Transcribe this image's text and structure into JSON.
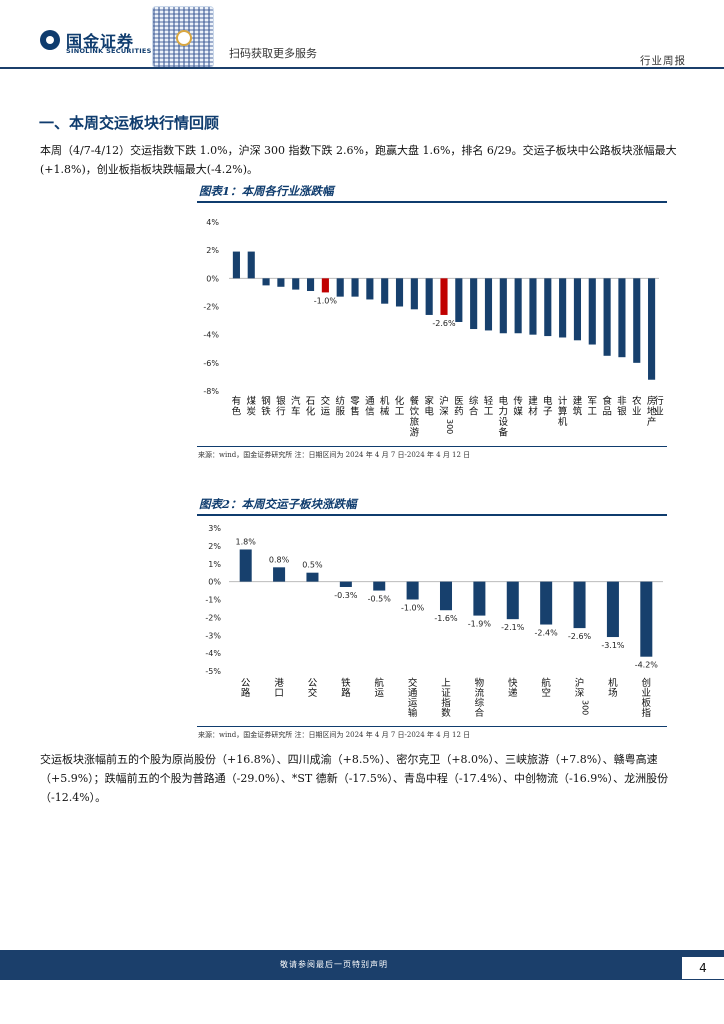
{
  "header": {
    "logo_cn": "国金证券",
    "logo_en": "SINOLINK SECURITIES",
    "qr_caption": "扫码获取更多服务",
    "report_type": "行业周报"
  },
  "section": {
    "title": "一、本周交运板块行情回顾",
    "intro": "本周（4/7-4/12）交运指数下跌 1.0%，沪深 300 指数下跌 2.6%，跑赢大盘 1.6%，排名 6/29。交运子板块中公路板块涨幅最大(+1.8%)，创业板指板块跌幅最大(-4.2%)。",
    "stocks": "交运板块涨幅前五的个股为原尚股份（+16.8%）、四川成渝（+8.5%）、密尔克卫（+8.0%）、三峡旅游（+7.8%）、赣粤高速（+5.9%）；跌幅前五的个股为普路通（-29.0%）、*ST 德新（-17.5%）、青岛中程（-17.4%）、中创物流（-16.9%）、龙洲股份（-12.4%）。"
  },
  "figure1": {
    "title": "图表1：本周各行业涨跌幅",
    "source": "来源：wind，国金证券研究所   注：日期区间为 2024 年 4 月 7 日-2024 年 4 月 12 日"
  },
  "figure2": {
    "title": "图表2：本周交运子板块涨跌幅",
    "source": "来源：wind，国金证券研究所   注：日期区间为 2024 年 4 月 7 日-2024 年 4 月 12 日"
  },
  "colors": {
    "primary": "#0f3c6e",
    "bar": "#17406d",
    "highlight": "#c00000"
  },
  "chart_data": [
    {
      "type": "bar",
      "title": "图表1：本周各行业涨跌幅",
      "ylim": [
        -8,
        4
      ],
      "yticks": [
        "4%",
        "2%",
        "0%",
        "-2%",
        "-4%",
        "-6%",
        "-8%"
      ],
      "categories": [
        "有色",
        "煤炭",
        "钢铁",
        "银行",
        "汽车",
        "石化",
        "交运",
        "纺服",
        "零售",
        "通信",
        "机械",
        "化工",
        "餐饮旅游",
        "家电",
        "沪深300",
        "医药",
        "综合",
        "轻工",
        "电力设备",
        "传媒",
        "建材",
        "电子",
        "计算机",
        "建筑",
        "军工",
        "食品",
        "非银",
        "农业",
        "房地产"
      ],
      "values": [
        1.9,
        1.9,
        -0.5,
        -0.6,
        -0.8,
        -0.9,
        -1.0,
        -1.3,
        -1.3,
        -1.5,
        -1.8,
        -2.0,
        -2.2,
        -2.6,
        -2.6,
        -3.1,
        -3.6,
        -3.7,
        -3.9,
        -3.9,
        -4.0,
        -4.1,
        -4.2,
        -4.4,
        -4.7,
        -5.5,
        -5.6,
        -6.0,
        -7.2
      ],
      "highlight": [
        "交运",
        "沪深300"
      ],
      "data_labels": {
        "交运": "-1.0%",
        "沪深300": "-2.6%"
      },
      "ylabel_suffix": "行业"
    },
    {
      "type": "bar",
      "title": "图表2：本周交运子板块涨跌幅",
      "ylim": [
        -5,
        3
      ],
      "yticks": [
        "3%",
        "2%",
        "1%",
        "0%",
        "-1%",
        "-2%",
        "-3%",
        "-4%",
        "-5%"
      ],
      "categories": [
        "公路",
        "港口",
        "公交",
        "铁路",
        "航运",
        "交通运输",
        "上证指数",
        "物流综合",
        "快递",
        "航空",
        "沪深300",
        "机场",
        "创业板指"
      ],
      "values": [
        1.8,
        0.8,
        0.5,
        -0.3,
        -0.5,
        -1.0,
        -1.6,
        -1.9,
        -2.1,
        -2.4,
        -2.6,
        -3.1,
        -4.2
      ],
      "labels": [
        "1.8%",
        "0.8%",
        "0.5%",
        "-0.3%",
        "-0.5%",
        "-1.0%",
        "-1.6%",
        "-1.9%",
        "-2.1%",
        "-2.4%",
        "-2.6%",
        "-3.1%",
        "-4.2%"
      ]
    }
  ],
  "footer": {
    "disclaimer": "敬请参阅最后一页特别声明",
    "page_number": "4"
  }
}
